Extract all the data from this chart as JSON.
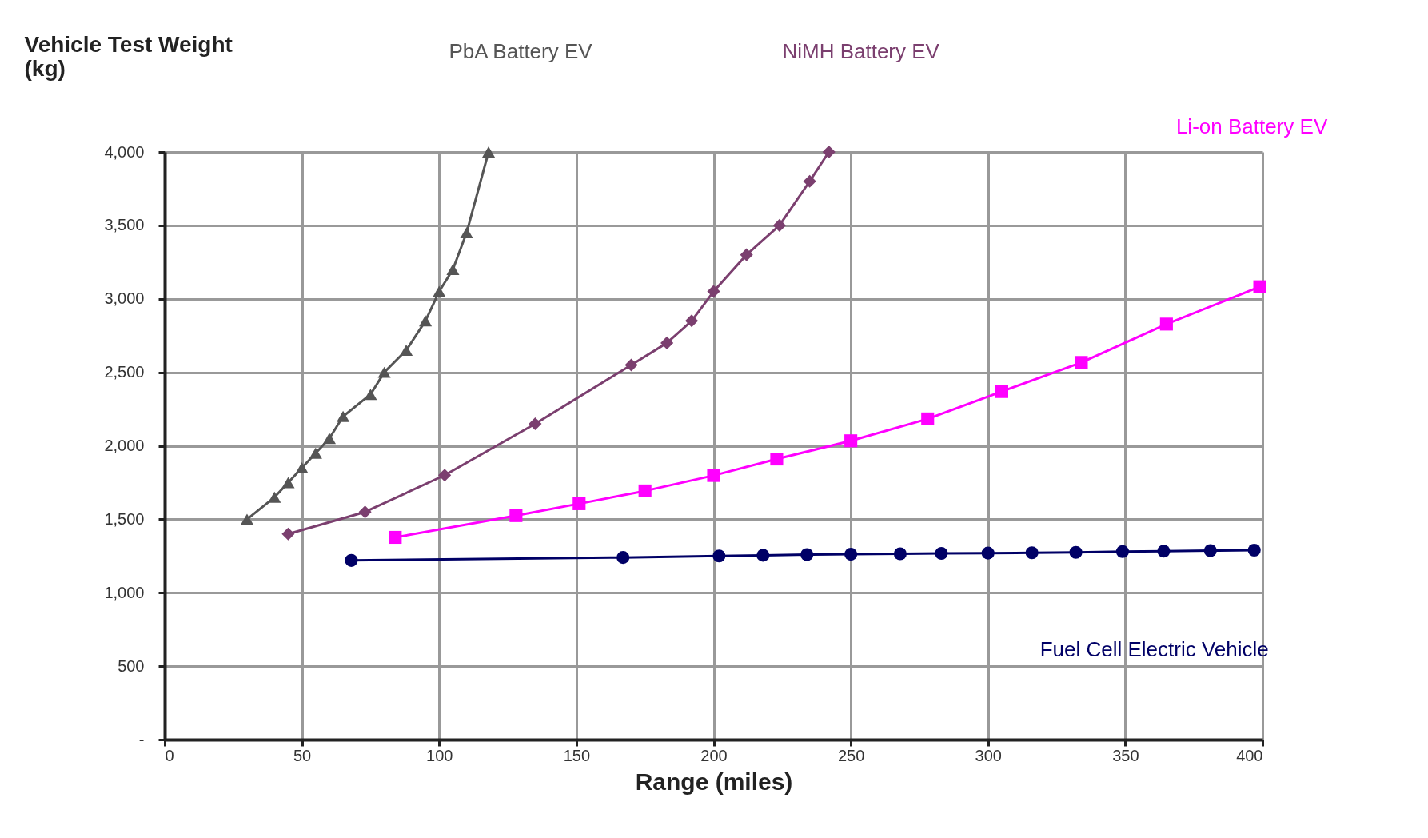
{
  "chart_data": {
    "type": "line",
    "xlabel": "Range (miles)",
    "ylabel": "Vehicle Test Weight (kg)",
    "xlim": [
      0,
      400
    ],
    "xticks": [
      0,
      50,
      100,
      150,
      200,
      250,
      300,
      350,
      400
    ],
    "ylim": [
      0,
      4000
    ],
    "yticks": [
      {
        "value": 0,
        "label": "-"
      },
      500,
      {
        "value": 1000,
        "label": "1,000"
      },
      {
        "value": 1500,
        "label": "1,500"
      },
      {
        "value": 2000,
        "label": "2,000"
      },
      {
        "value": 2500,
        "label": "2,500"
      },
      {
        "value": 3000,
        "label": "3,000"
      },
      {
        "value": 3500,
        "label": "3,500"
      },
      {
        "value": 4000,
        "label": "4,000"
      }
    ],
    "grid": true,
    "series": [
      {
        "name": "PbA Battery EV",
        "color": "#555555",
        "marker": "triangle",
        "x": [
          30,
          40,
          45,
          50,
          55,
          60,
          65,
          75,
          80,
          88,
          95,
          100,
          105,
          110,
          118
        ],
        "values": [
          1500,
          1650,
          1750,
          1850,
          1950,
          2050,
          2200,
          2350,
          2500,
          2650,
          2850,
          3050,
          3200,
          3450,
          4000
        ]
      },
      {
        "name": "NiMH Battery EV",
        "color": "#7b3f6f",
        "marker": "diamond",
        "x": [
          45,
          73,
          102,
          135,
          170,
          183,
          192,
          200,
          212,
          224,
          235,
          242
        ],
        "values": [
          1400,
          1550,
          1800,
          2150,
          2550,
          2700,
          2850,
          3050,
          3300,
          3500,
          3800,
          4000
        ]
      },
      {
        "name": "Li-on Battery EV",
        "color": "#ff00ff",
        "marker": "square",
        "x": [
          84,
          128,
          151,
          175,
          200,
          223,
          250,
          278,
          305,
          334,
          365,
          399
        ],
        "values": [
          1377,
          1525,
          1606,
          1693,
          1798,
          1910,
          2034,
          2183,
          2369,
          2567,
          2828,
          3082
        ]
      },
      {
        "name": "Fuel Cell Electric Vehicle",
        "color": "#000066",
        "marker": "circle",
        "x": [
          68,
          167,
          202,
          218,
          234,
          250,
          268,
          283,
          300,
          316,
          332,
          349,
          364,
          381,
          397
        ],
        "values": [
          1220,
          1240,
          1250,
          1255,
          1260,
          1262,
          1265,
          1268,
          1270,
          1272,
          1275,
          1280,
          1283,
          1287,
          1290
        ]
      }
    ]
  }
}
